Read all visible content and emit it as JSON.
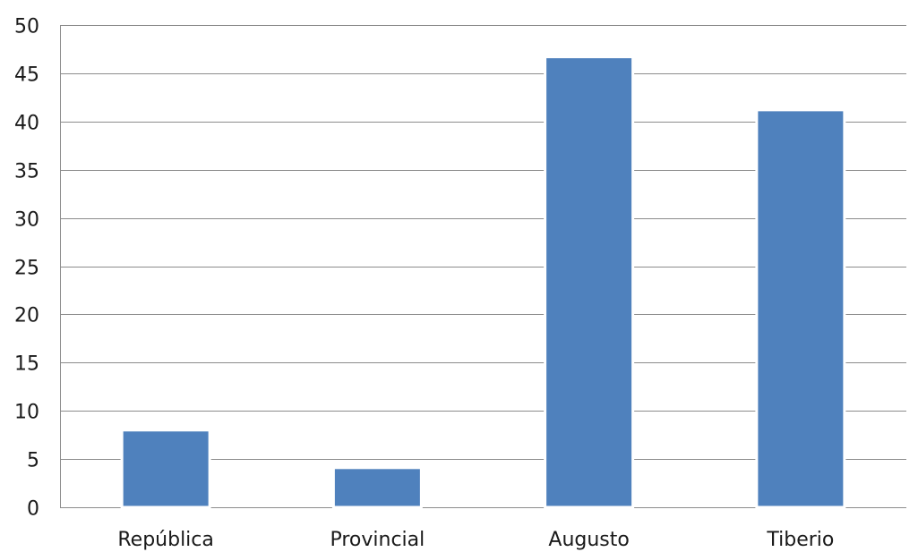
{
  "chart_data": {
    "type": "bar",
    "title": "",
    "xlabel": "",
    "ylabel": "",
    "categories": [
      "República",
      "Provincial",
      "Augusto",
      "Tiberio"
    ],
    "series": [
      {
        "values": [
          8,
          4.1,
          46.7,
          41.2
        ]
      }
    ],
    "ylim": [
      0,
      50
    ],
    "yticks": [
      0,
      5,
      10,
      15,
      20,
      25,
      30,
      35,
      40,
      45,
      50
    ],
    "grid": true,
    "legend": "none",
    "colors": {
      "bar": "#4f81bd",
      "bar_edge": "#ffffff",
      "gridline": "#8c8c8c",
      "axis": "#8c8c8c"
    }
  }
}
